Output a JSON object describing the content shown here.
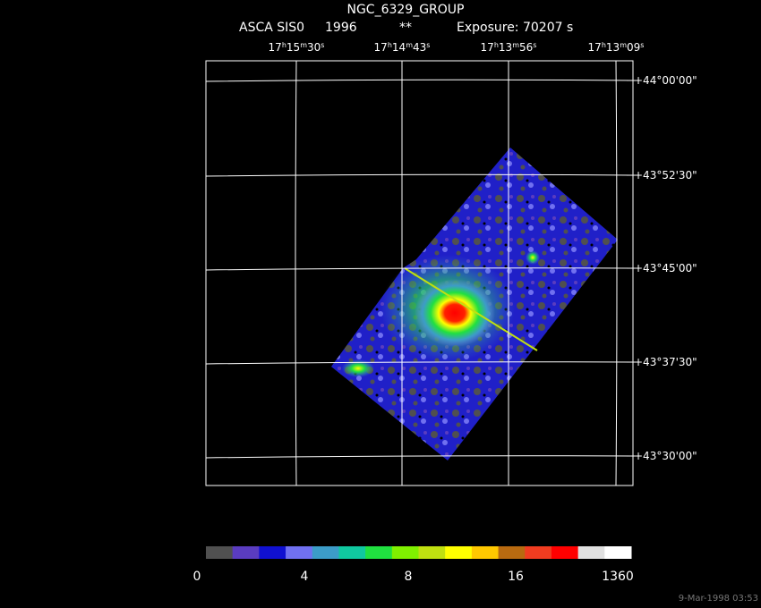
{
  "header": {
    "title": "NGC_6329_GROUP",
    "subtitle": [
      "ASCA SIS0",
      "1996",
      "**",
      "Exposure: 70207 s"
    ]
  },
  "ra_labels": [
    [
      "17",
      "h",
      "15",
      "m",
      "30",
      "s"
    ],
    [
      "17",
      "h",
      "14",
      "m",
      "43",
      "s"
    ],
    [
      "17",
      "h",
      "13",
      "m",
      "56",
      "s"
    ],
    [
      "17",
      "h",
      "13",
      "m",
      "09",
      "s"
    ]
  ],
  "dec_labels": [
    "+44°00'00\"",
    "+43°52'30\"",
    "+43°45'00\"",
    "+43°37'30\"",
    "+43°30'00\""
  ],
  "colorbar": {
    "colors": [
      "#505050",
      "#5a3cc0",
      "#1010d0",
      "#7070f0",
      "#3c9cc8",
      "#10c8a0",
      "#20e040",
      "#80f000",
      "#c0e010",
      "#ffff00",
      "#ffc800",
      "#b86a10",
      "#f03c20",
      "#ff0000",
      "#e0e0e0",
      "#ffffff"
    ],
    "labels": [
      "0",
      "4",
      "8",
      "16",
      "1360"
    ]
  },
  "footer": {
    "timestamp": "9-Mar-1998 03:53"
  }
}
